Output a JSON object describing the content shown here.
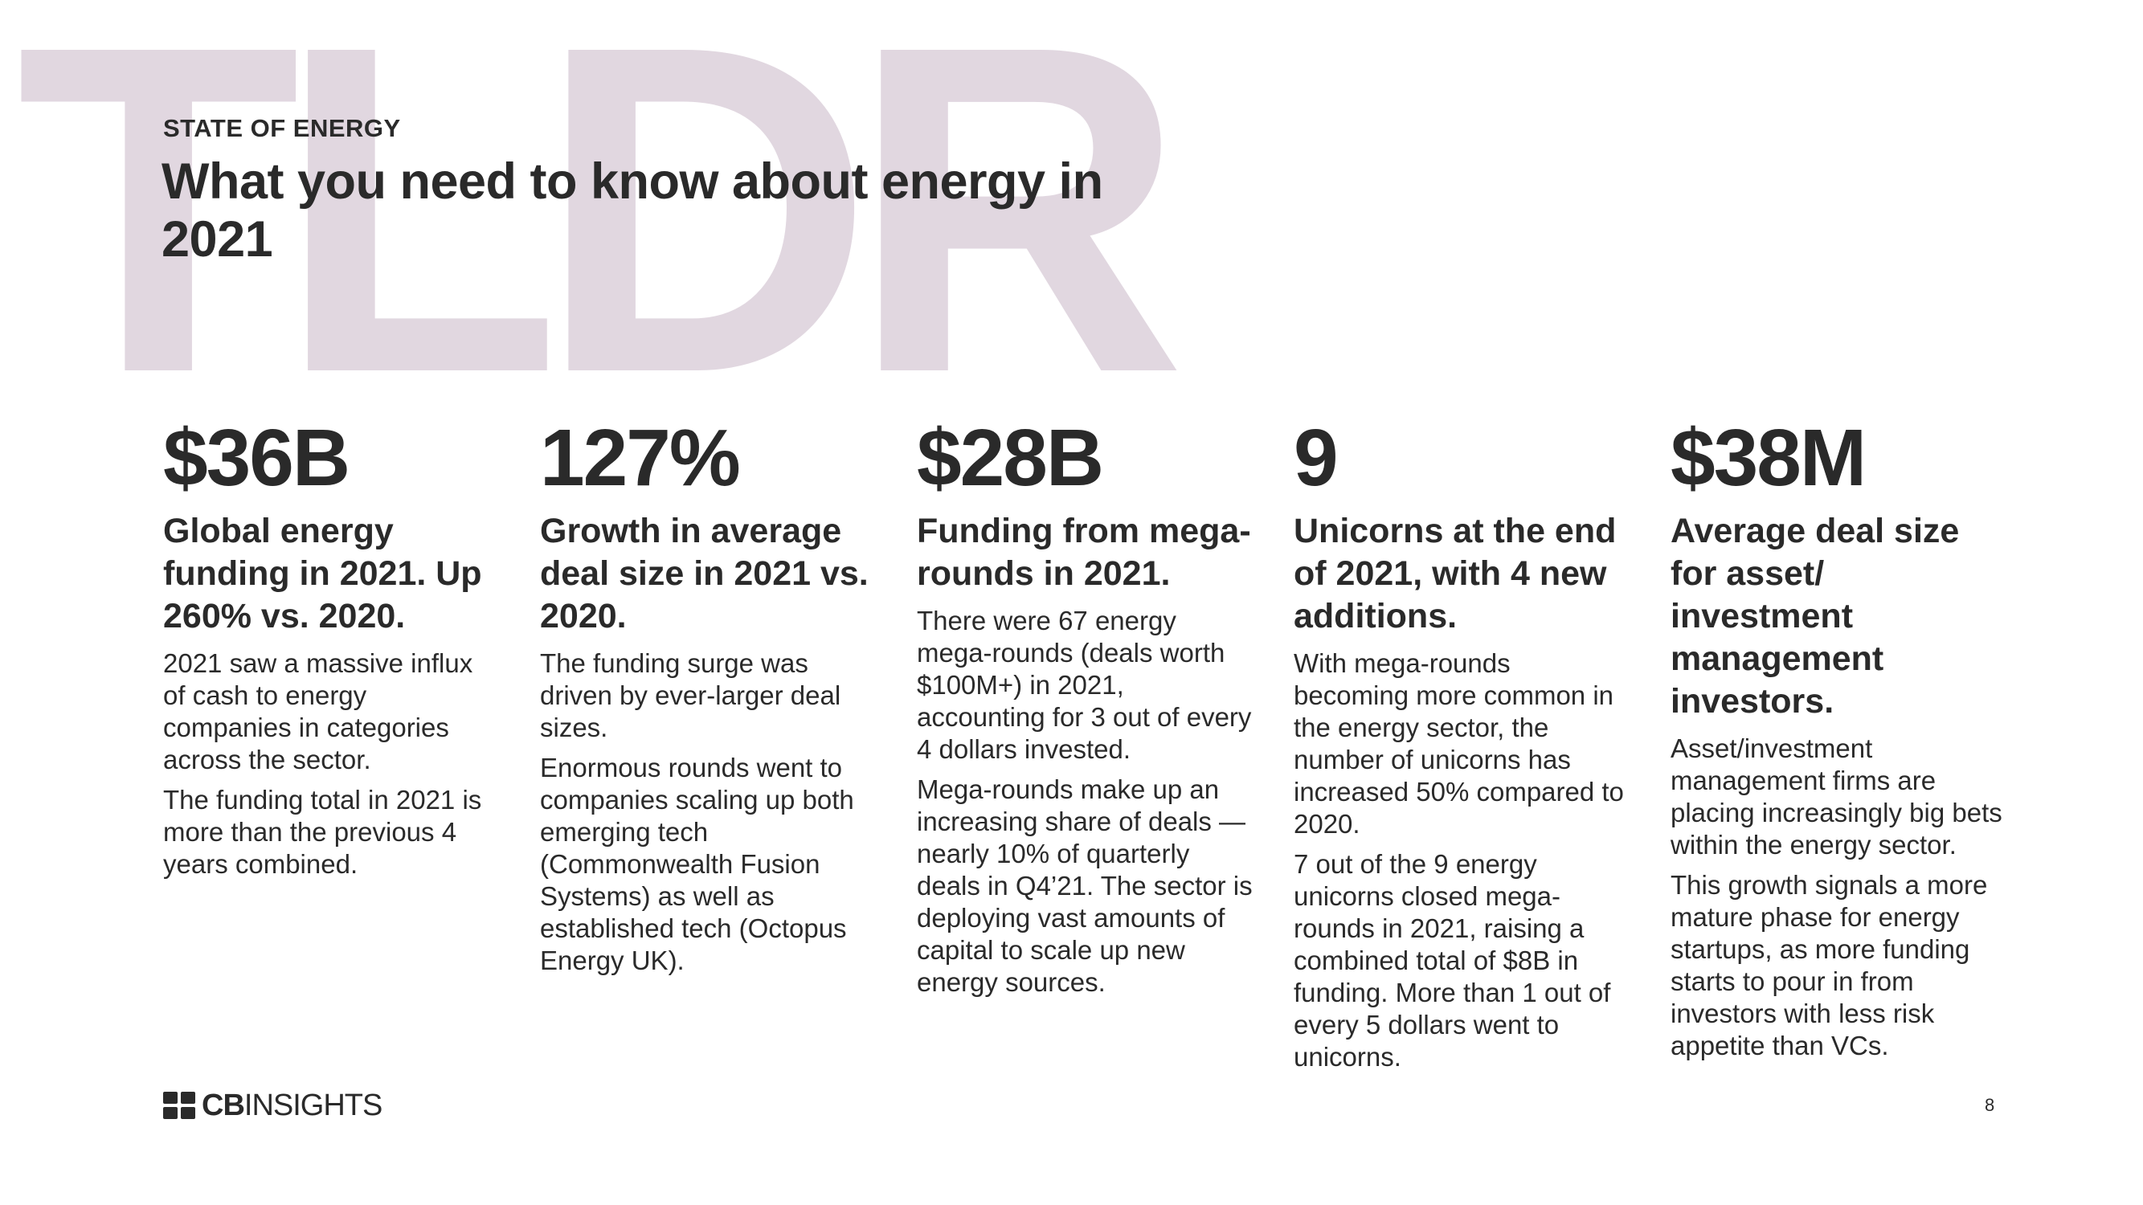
{
  "background_word": "TLDR",
  "eyebrow": "STATE OF ENERGY",
  "headline": "What you need to know about energy in 2021",
  "columns": [
    {
      "stat": "$36B",
      "subhead": "Global energy funding in 2021. Up 260% vs. 2020.",
      "paragraphs": [
        "2021 saw a massive influx of cash to energy companies in categories across the sector.",
        "The funding total in 2021 is more than the previous 4 years combined."
      ]
    },
    {
      "stat": "127%",
      "subhead": "Growth in average deal size in 2021 vs. 2020.",
      "paragraphs": [
        "The funding surge was driven by ever-larger deal sizes.",
        "Enormous rounds went to companies scaling up both emerging tech (Commonwealth Fusion Systems) as well as established tech (Octopus Energy UK)."
      ]
    },
    {
      "stat": "$28B",
      "subhead": "Funding from mega-rounds in 2021.",
      "paragraphs": [
        "There were 67 energy mega-rounds (deals worth $100M+) in 2021, accounting for 3 out of every 4 dollars invested.",
        "Mega-rounds make up an increasing share of deals — nearly 10% of quarterly deals in Q4’21. The sector is deploying vast amounts of capital to scale up new energy sources."
      ]
    },
    {
      "stat": "9",
      "subhead": "Unicorns at the end of 2021, with 4 new additions.",
      "paragraphs": [
        "With mega-rounds becoming more common in the energy sector, the number of unicorns has increased 50% compared to 2020.",
        "7 out of the 9 energy unicorns closed mega-rounds in 2021, raising a combined total of $8B in funding. More than 1 out of every 5 dollars went to unicorns."
      ]
    },
    {
      "stat": "$38M",
      "subhead": "Average deal size for asset/ investment management investors.",
      "paragraphs": [
        "Asset/investment management firms are placing increasingly big bets within the energy sector.",
        "This growth signals a more mature phase for energy startups, as more funding starts to pour in from investors with less risk appetite than VCs."
      ]
    }
  ],
  "logo": {
    "bold": "CB",
    "regular": "INSIGHTS"
  },
  "page_number": "8",
  "colors": {
    "background_word": "#e1d7e0",
    "text": "#2a2a2a"
  }
}
